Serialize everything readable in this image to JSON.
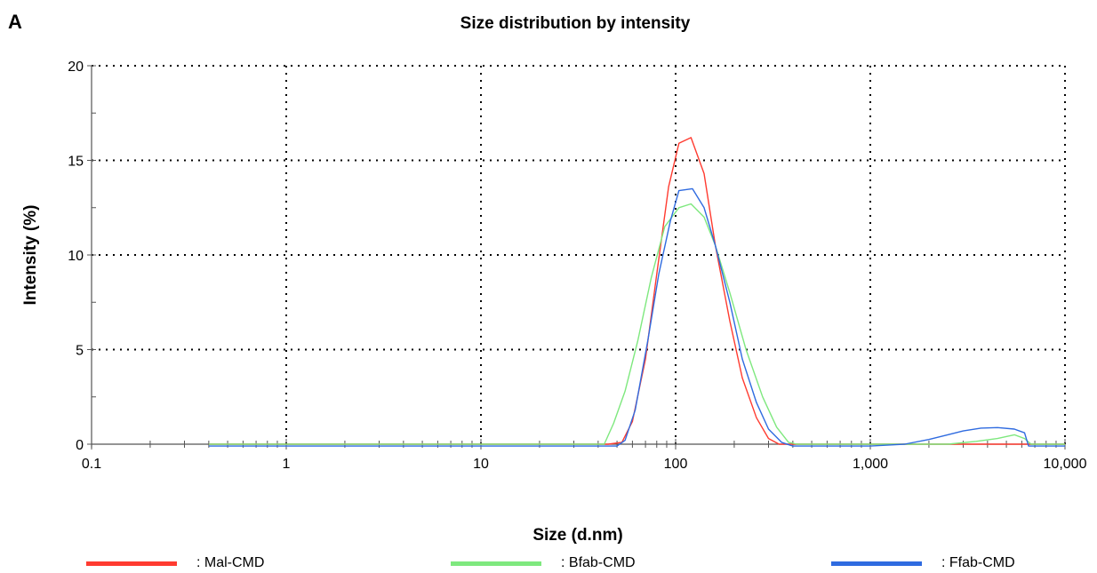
{
  "panel_label": "A",
  "chart_data": {
    "type": "line",
    "title": "Size distribution by intensity",
    "xlabel": "Size (d.nm)",
    "ylabel": "Intensity (%)",
    "x_scale": "log",
    "xlim": [
      0.1,
      10000
    ],
    "ylim": [
      0,
      20
    ],
    "x_ticks": [
      0.1,
      1,
      10,
      100,
      1000,
      10000
    ],
    "x_tick_labels": [
      "0.1",
      "1",
      "10",
      "100",
      "1,000",
      "10,000"
    ],
    "y_ticks": [
      0,
      5,
      10,
      15,
      20
    ],
    "y_tick_labels": [
      "0",
      "5",
      "10",
      "15",
      "20"
    ],
    "grid": true,
    "legend_position": "bottom",
    "series": [
      {
        "name": "Mal-CMD",
        "color": "#ff3b30",
        "points": [
          [
            0.4,
            0
          ],
          [
            1,
            0
          ],
          [
            10,
            0
          ],
          [
            45,
            0
          ],
          [
            53,
            0.1
          ],
          [
            60,
            1.2
          ],
          [
            70,
            4.5
          ],
          [
            80,
            9
          ],
          [
            92,
            13.6
          ],
          [
            104,
            15.9
          ],
          [
            120,
            16.2
          ],
          [
            140,
            14.3
          ],
          [
            160,
            10.5
          ],
          [
            190,
            6.5
          ],
          [
            220,
            3.5
          ],
          [
            260,
            1.4
          ],
          [
            300,
            0.3
          ],
          [
            340,
            0
          ],
          [
            400,
            0
          ],
          [
            1000,
            0
          ],
          [
            5000,
            0
          ],
          [
            10000,
            0
          ]
        ]
      },
      {
        "name": "Bfab-CMD",
        "color": "#7ee87e",
        "points": [
          [
            0.4,
            0
          ],
          [
            1,
            0
          ],
          [
            10,
            0
          ],
          [
            43,
            0
          ],
          [
            48,
            1.1
          ],
          [
            55,
            2.8
          ],
          [
            64,
            5.5
          ],
          [
            75,
            8.8
          ],
          [
            88,
            11.5
          ],
          [
            104,
            12.5
          ],
          [
            120,
            12.7
          ],
          [
            140,
            12.0
          ],
          [
            160,
            10.5
          ],
          [
            190,
            8.0
          ],
          [
            230,
            5.0
          ],
          [
            280,
            2.5
          ],
          [
            330,
            0.9
          ],
          [
            380,
            0.1
          ],
          [
            420,
            0
          ],
          [
            1000,
            0
          ],
          [
            2500,
            0
          ],
          [
            3500,
            0.15
          ],
          [
            4500,
            0.3
          ],
          [
            5500,
            0.5
          ],
          [
            6200,
            0.3
          ],
          [
            6700,
            0
          ],
          [
            10000,
            0
          ]
        ]
      },
      {
        "name": "Ffab-CMD",
        "color": "#2f6be0",
        "points": [
          [
            0.4,
            -0.1
          ],
          [
            1,
            -0.1
          ],
          [
            10,
            -0.1
          ],
          [
            50,
            -0.1
          ],
          [
            55,
            0.2
          ],
          [
            62,
            1.8
          ],
          [
            72,
            5.5
          ],
          [
            82,
            9
          ],
          [
            94,
            11.8
          ],
          [
            104,
            13.4
          ],
          [
            122,
            13.5
          ],
          [
            140,
            12.5
          ],
          [
            160,
            10.5
          ],
          [
            190,
            7.5
          ],
          [
            220,
            4.5
          ],
          [
            260,
            2.2
          ],
          [
            300,
            0.8
          ],
          [
            350,
            0.1
          ],
          [
            400,
            -0.1
          ],
          [
            1000,
            -0.1
          ],
          [
            1500,
            0
          ],
          [
            2000,
            0.25
          ],
          [
            2500,
            0.5
          ],
          [
            3000,
            0.7
          ],
          [
            3700,
            0.85
          ],
          [
            4500,
            0.88
          ],
          [
            5500,
            0.8
          ],
          [
            6200,
            0.6
          ],
          [
            6500,
            -0.1
          ],
          [
            10000,
            -0.1
          ]
        ]
      }
    ]
  }
}
